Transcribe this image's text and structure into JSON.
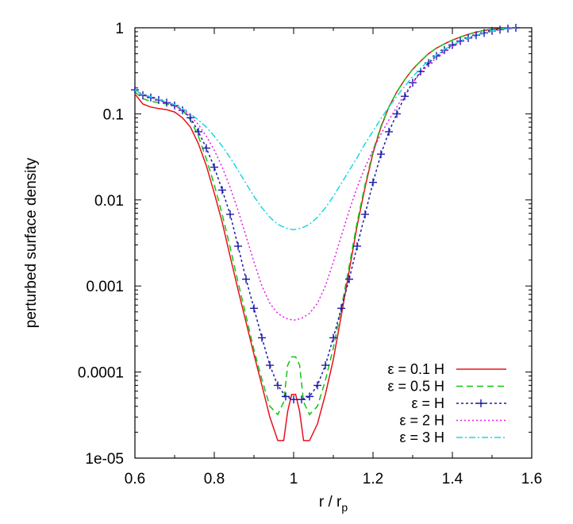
{
  "chart_data": {
    "type": "line",
    "title": "",
    "xlabel": "r / r",
    "xlabel_subscript": "p",
    "ylabel": "perturbed surface density",
    "xscale": "linear",
    "yscale": "log",
    "xlim": [
      0.6,
      1.6
    ],
    "ylim": [
      1e-05,
      1
    ],
    "grid": false,
    "legend_position": "bottom-right",
    "x_ticks": [
      {
        "value": 0.6,
        "label": "0.6"
      },
      {
        "value": 0.8,
        "label": "0.8"
      },
      {
        "value": 1.0,
        "label": "1"
      },
      {
        "value": 1.2,
        "label": "1.2"
      },
      {
        "value": 1.4,
        "label": "1.4"
      },
      {
        "value": 1.6,
        "label": "1.6"
      }
    ],
    "y_ticks": [
      {
        "value": 1,
        "label": "1"
      },
      {
        "value": 0.1,
        "label": "0.1"
      },
      {
        "value": 0.01,
        "label": "0.01"
      },
      {
        "value": 0.001,
        "label": "0.001"
      },
      {
        "value": 0.0001,
        "label": "0.0001"
      },
      {
        "value": 1e-05,
        "label": "1e-05"
      }
    ],
    "series": [
      {
        "name": "ε = 0.1 H",
        "color": "#e8101a",
        "dash": "",
        "marker": "none",
        "x": [
          0.6,
          0.62,
          0.64,
          0.66,
          0.68,
          0.7,
          0.72,
          0.74,
          0.76,
          0.78,
          0.8,
          0.82,
          0.84,
          0.86,
          0.88,
          0.9,
          0.92,
          0.94,
          0.96,
          0.975,
          0.985,
          0.995,
          1.005,
          1.015,
          1.025,
          1.04,
          1.06,
          1.08,
          1.1,
          1.12,
          1.14,
          1.16,
          1.18,
          1.2,
          1.22,
          1.24,
          1.26,
          1.28,
          1.3,
          1.32,
          1.34,
          1.36,
          1.38,
          1.4,
          1.42,
          1.44,
          1.46,
          1.48,
          1.5,
          1.52,
          1.54,
          1.56
        ],
        "y": [
          0.17,
          0.13,
          0.12,
          0.115,
          0.112,
          0.105,
          0.09,
          0.07,
          0.045,
          0.025,
          0.012,
          0.0055,
          0.0022,
          0.0009,
          0.00038,
          0.00016,
          7e-05,
          3e-05,
          1.6e-05,
          1.6e-05,
          3.5e-05,
          5.5e-05,
          5.5e-05,
          3.5e-05,
          1.6e-05,
          1.6e-05,
          2.5e-05,
          5.5e-05,
          0.00014,
          0.00045,
          0.0015,
          0.005,
          0.014,
          0.035,
          0.07,
          0.12,
          0.18,
          0.25,
          0.33,
          0.41,
          0.5,
          0.58,
          0.65,
          0.72,
          0.78,
          0.84,
          0.89,
          0.93,
          0.96,
          0.98,
          0.995,
          1.0
        ]
      },
      {
        "name": "ε = 0.5 H",
        "color": "#13c413",
        "dash": "8,5",
        "marker": "none",
        "x": [
          0.6,
          0.62,
          0.64,
          0.66,
          0.68,
          0.7,
          0.72,
          0.74,
          0.76,
          0.78,
          0.8,
          0.82,
          0.84,
          0.86,
          0.88,
          0.9,
          0.92,
          0.94,
          0.96,
          0.975,
          0.985,
          0.995,
          1.005,
          1.015,
          1.025,
          1.04,
          1.06,
          1.08,
          1.1,
          1.12,
          1.14,
          1.16,
          1.18,
          1.2,
          1.22,
          1.24,
          1.26,
          1.28,
          1.3,
          1.32,
          1.34,
          1.36,
          1.38,
          1.4,
          1.42,
          1.44,
          1.46,
          1.48,
          1.5,
          1.52,
          1.54,
          1.56
        ],
        "y": [
          0.18,
          0.15,
          0.14,
          0.135,
          0.13,
          0.125,
          0.11,
          0.085,
          0.055,
          0.03,
          0.015,
          0.0068,
          0.0028,
          0.0011,
          0.00045,
          0.00018,
          8.2e-05,
          4e-05,
          3.2e-05,
          4.5e-05,
          0.00012,
          0.00015,
          0.00015,
          0.00012,
          4.5e-05,
          3.2e-05,
          4e-05,
          8e-05,
          0.00019,
          0.00055,
          0.0017,
          0.0055,
          0.015,
          0.037,
          0.072,
          0.12,
          0.18,
          0.25,
          0.33,
          0.41,
          0.5,
          0.58,
          0.65,
          0.72,
          0.78,
          0.84,
          0.89,
          0.93,
          0.96,
          0.98,
          0.995,
          1.0
        ]
      },
      {
        "name": "ε = H",
        "color": "#1a1aa8",
        "dash": "3,3",
        "marker": "plus",
        "x": [
          0.6,
          0.62,
          0.64,
          0.66,
          0.68,
          0.7,
          0.72,
          0.74,
          0.76,
          0.78,
          0.8,
          0.82,
          0.84,
          0.86,
          0.88,
          0.9,
          0.92,
          0.94,
          0.96,
          0.98,
          1.0,
          1.02,
          1.04,
          1.06,
          1.08,
          1.1,
          1.12,
          1.14,
          1.16,
          1.18,
          1.2,
          1.22,
          1.24,
          1.26,
          1.28,
          1.3,
          1.32,
          1.34,
          1.36,
          1.38,
          1.4,
          1.42,
          1.44,
          1.46,
          1.48,
          1.5,
          1.52,
          1.54,
          1.56
        ],
        "y": [
          0.19,
          0.165,
          0.155,
          0.145,
          0.135,
          0.125,
          0.11,
          0.09,
          0.062,
          0.04,
          0.024,
          0.013,
          0.0068,
          0.0029,
          0.0012,
          0.00055,
          0.00025,
          0.00012,
          7e-05,
          5.2e-05,
          4.8e-05,
          4.8e-05,
          5.2e-05,
          7e-05,
          0.00012,
          0.00025,
          0.00055,
          0.0012,
          0.0029,
          0.0068,
          0.016,
          0.034,
          0.062,
          0.1,
          0.16,
          0.23,
          0.31,
          0.39,
          0.47,
          0.55,
          0.63,
          0.7,
          0.76,
          0.82,
          0.87,
          0.92,
          0.95,
          0.98,
          1.0
        ]
      },
      {
        "name": "ε = 2 H",
        "color": "#e81ae8",
        "dash": "2,3",
        "marker": "none",
        "x": [
          0.6,
          0.62,
          0.64,
          0.66,
          0.68,
          0.7,
          0.72,
          0.74,
          0.76,
          0.78,
          0.8,
          0.82,
          0.84,
          0.86,
          0.88,
          0.9,
          0.92,
          0.94,
          0.96,
          0.98,
          1.0,
          1.02,
          1.04,
          1.06,
          1.08,
          1.1,
          1.12,
          1.14,
          1.16,
          1.18,
          1.2,
          1.22,
          1.24,
          1.26,
          1.28,
          1.3,
          1.32,
          1.34,
          1.36,
          1.38,
          1.4,
          1.42,
          1.44,
          1.46,
          1.48,
          1.5,
          1.52,
          1.54,
          1.56
        ],
        "y": [
          0.19,
          0.165,
          0.155,
          0.145,
          0.135,
          0.125,
          0.112,
          0.095,
          0.075,
          0.055,
          0.038,
          0.024,
          0.014,
          0.0075,
          0.0038,
          0.0019,
          0.001,
          0.00063,
          0.00048,
          0.00042,
          0.0004,
          0.00042,
          0.00048,
          0.00063,
          0.001,
          0.0019,
          0.0038,
          0.0075,
          0.014,
          0.024,
          0.038,
          0.058,
          0.085,
          0.12,
          0.17,
          0.23,
          0.3,
          0.37,
          0.45,
          0.53,
          0.61,
          0.68,
          0.75,
          0.81,
          0.86,
          0.91,
          0.95,
          0.98,
          1.0
        ]
      },
      {
        "name": "ε = 3 H",
        "color": "#1ad8e0",
        "dash": "8,3,2,3",
        "marker": "none",
        "x": [
          0.6,
          0.62,
          0.64,
          0.66,
          0.68,
          0.7,
          0.72,
          0.74,
          0.76,
          0.78,
          0.8,
          0.82,
          0.84,
          0.86,
          0.88,
          0.9,
          0.92,
          0.94,
          0.96,
          0.98,
          1.0,
          1.02,
          1.04,
          1.06,
          1.08,
          1.1,
          1.12,
          1.14,
          1.16,
          1.18,
          1.2,
          1.22,
          1.24,
          1.26,
          1.28,
          1.3,
          1.32,
          1.34,
          1.36,
          1.38,
          1.4,
          1.42,
          1.44,
          1.46,
          1.48,
          1.5,
          1.52,
          1.54,
          1.56
        ],
        "y": [
          0.19,
          0.168,
          0.158,
          0.148,
          0.138,
          0.128,
          0.115,
          0.1,
          0.085,
          0.07,
          0.055,
          0.042,
          0.031,
          0.022,
          0.0155,
          0.011,
          0.0081,
          0.0063,
          0.0052,
          0.0047,
          0.0045,
          0.0047,
          0.0052,
          0.0063,
          0.0081,
          0.011,
          0.0155,
          0.022,
          0.031,
          0.045,
          0.063,
          0.088,
          0.12,
          0.16,
          0.21,
          0.27,
          0.34,
          0.41,
          0.48,
          0.56,
          0.63,
          0.7,
          0.76,
          0.82,
          0.87,
          0.92,
          0.95,
          0.98,
          1.0
        ]
      }
    ]
  }
}
